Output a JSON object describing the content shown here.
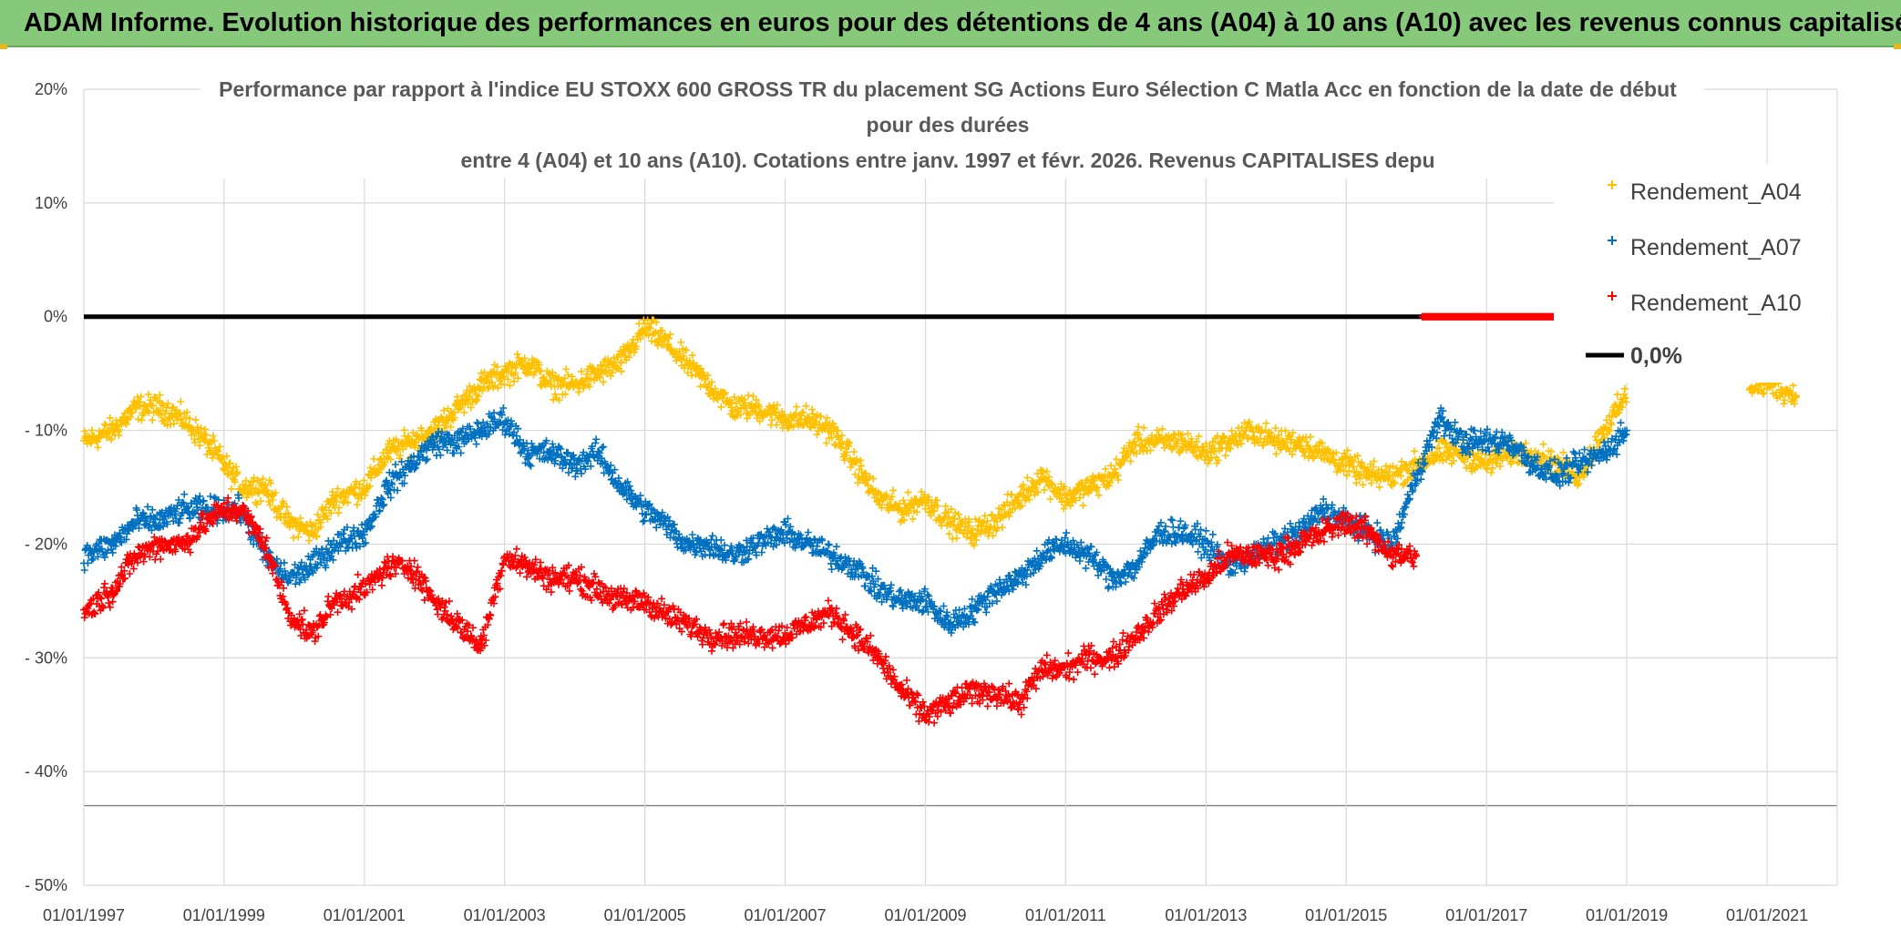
{
  "banner": {
    "title": "ADAM Informe. Evolution historique des performances en euros pour des détentions de 4 ans (A04) à 10 ans (A10) avec les revenus connus capitalisés"
  },
  "colors": {
    "banner_bg": "#86c97a",
    "A04": "#ffc000",
    "A07": "#0070c0",
    "A10": "#ff0000",
    "zero_line": "#000000",
    "grid": "#d9d9d9"
  },
  "chart_data": {
    "type": "scatter",
    "title_lines": [
      "Performance par rapport à l'indice EU STOXX 600 GROSS TR  du placement SG Actions Euro Sélection C Matla Acc en fonction de la date de début",
      "pour des durées",
      "entre 4 (A04) et 10 ans (A10). Cotations entre janv. 1997 et févr. 2026. Revenus CAPITALISES depu"
    ],
    "x_axis": {
      "type": "date",
      "min": "1997-01-01",
      "max": "2022-01-01",
      "tick_labels": [
        "01/01/1997",
        "01/01/1999",
        "01/01/2001",
        "01/01/2003",
        "01/01/2005",
        "01/01/2007",
        "01/01/2009",
        "01/01/2011",
        "01/01/2013",
        "01/01/2015",
        "01/01/2017",
        "01/01/2019",
        "01/01/2021"
      ]
    },
    "y_axis": {
      "min": -50,
      "max": 20,
      "unit": "%",
      "ticks": [
        20,
        10,
        0,
        -10,
        -20,
        -30,
        -40,
        -50
      ],
      "tick_labels": [
        "20%",
        "10%",
        "0%",
        "- 10%",
        "- 20%",
        "- 30%",
        "- 40%",
        "- 50%"
      ]
    },
    "grid": true,
    "legend_position": "right",
    "legend": [
      "Rendement_A04",
      "Rendement_A07",
      "Rendement_A10",
      "0,0%"
    ],
    "series": [
      {
        "name": "Rendement_A04",
        "marker": "plus",
        "color": "#ffc000",
        "points": [
          [
            "1997-01-01",
            -11
          ],
          [
            "1997-06-01",
            -10
          ],
          [
            "1997-10-01",
            -8
          ],
          [
            "1998-02-01",
            -8
          ],
          [
            "1998-06-01",
            -9
          ],
          [
            "1998-10-01",
            -11
          ],
          [
            "1999-01-01",
            -13
          ],
          [
            "1999-04-01",
            -15
          ],
          [
            "1999-08-01",
            -15
          ],
          [
            "1999-12-01",
            -18
          ],
          [
            "2000-04-01",
            -19
          ],
          [
            "2000-08-01",
            -16
          ],
          [
            "2001-01-01",
            -15
          ],
          [
            "2001-05-01",
            -12
          ],
          [
            "2001-09-01",
            -11
          ],
          [
            "2002-01-01",
            -10
          ],
          [
            "2002-05-01",
            -8
          ],
          [
            "2002-09-01",
            -6
          ],
          [
            "2003-01-01",
            -5
          ],
          [
            "2003-05-01",
            -4
          ],
          [
            "2003-09-01",
            -6
          ],
          [
            "2004-01-01",
            -6
          ],
          [
            "2004-05-01",
            -5
          ],
          [
            "2004-09-01",
            -4
          ],
          [
            "2005-01-01",
            -1
          ],
          [
            "2005-04-01",
            -2
          ],
          [
            "2005-08-01",
            -4
          ],
          [
            "2005-12-01",
            -6
          ],
          [
            "2006-04-01",
            -8
          ],
          [
            "2006-08-01",
            -8
          ],
          [
            "2007-01-01",
            -9
          ],
          [
            "2007-05-01",
            -9
          ],
          [
            "2007-09-01",
            -10
          ],
          [
            "2008-01-01",
            -13
          ],
          [
            "2008-05-01",
            -16
          ],
          [
            "2008-09-01",
            -17
          ],
          [
            "2009-01-01",
            -16
          ],
          [
            "2009-05-01",
            -18
          ],
          [
            "2009-09-01",
            -19
          ],
          [
            "2010-01-01",
            -18
          ],
          [
            "2010-05-01",
            -16
          ],
          [
            "2010-09-01",
            -14
          ],
          [
            "2011-01-01",
            -16
          ],
          [
            "2011-05-01",
            -15
          ],
          [
            "2011-09-01",
            -14
          ],
          [
            "2012-01-01",
            -11
          ],
          [
            "2012-05-01",
            -11
          ],
          [
            "2012-09-01",
            -11
          ],
          [
            "2013-01-01",
            -12
          ],
          [
            "2013-05-01",
            -11
          ],
          [
            "2013-09-01",
            -10
          ],
          [
            "2014-01-01",
            -11
          ],
          [
            "2014-05-01",
            -11
          ],
          [
            "2014-09-01",
            -12
          ],
          [
            "2015-01-01",
            -13
          ],
          [
            "2015-05-01",
            -14
          ],
          [
            "2015-09-01",
            -14
          ],
          [
            "2016-01-01",
            -13
          ],
          [
            "2016-05-01",
            -12
          ],
          [
            "2016-09-01",
            -12
          ],
          [
            "2017-01-01",
            -13
          ],
          [
            "2017-05-01",
            -12
          ],
          [
            "2017-09-01",
            -12
          ],
          [
            "2018-01-01",
            -13
          ],
          [
            "2018-05-01",
            -14
          ],
          [
            "2018-09-01",
            -10
          ],
          [
            "2019-01-01",
            -7
          ],
          [
            "2020-10-01",
            -6
          ],
          [
            "2021-02-01",
            -6
          ],
          [
            "2021-06-01",
            -7
          ]
        ]
      },
      {
        "name": "Rendement_A07",
        "marker": "plus",
        "color": "#0070c0",
        "points": [
          [
            "1997-01-01",
            -21
          ],
          [
            "1997-06-01",
            -20
          ],
          [
            "1997-10-01",
            -18
          ],
          [
            "1998-02-01",
            -18
          ],
          [
            "1998-06-01",
            -17
          ],
          [
            "1998-10-01",
            -17
          ],
          [
            "1999-01-01",
            -17
          ],
          [
            "1999-04-01",
            -17
          ],
          [
            "1999-08-01",
            -21
          ],
          [
            "1999-12-01",
            -23
          ],
          [
            "2000-04-01",
            -22
          ],
          [
            "2000-08-01",
            -20
          ],
          [
            "2001-01-01",
            -19
          ],
          [
            "2001-05-01",
            -15
          ],
          [
            "2001-09-01",
            -13
          ],
          [
            "2002-01-01",
            -11
          ],
          [
            "2002-05-01",
            -11
          ],
          [
            "2002-09-01",
            -10
          ],
          [
            "2003-01-01",
            -9
          ],
          [
            "2003-05-01",
            -12
          ],
          [
            "2003-09-01",
            -12
          ],
          [
            "2004-01-01",
            -13
          ],
          [
            "2004-05-01",
            -12
          ],
          [
            "2004-09-01",
            -15
          ],
          [
            "2005-01-01",
            -17
          ],
          [
            "2005-04-01",
            -18
          ],
          [
            "2005-08-01",
            -20
          ],
          [
            "2005-12-01",
            -20
          ],
          [
            "2006-04-01",
            -21
          ],
          [
            "2006-08-01",
            -20
          ],
          [
            "2007-01-01",
            -19
          ],
          [
            "2007-05-01",
            -20
          ],
          [
            "2007-09-01",
            -21
          ],
          [
            "2008-01-01",
            -22
          ],
          [
            "2008-05-01",
            -24
          ],
          [
            "2008-09-01",
            -25
          ],
          [
            "2009-01-01",
            -25
          ],
          [
            "2009-05-01",
            -27
          ],
          [
            "2009-09-01",
            -26
          ],
          [
            "2010-01-01",
            -24
          ],
          [
            "2010-05-01",
            -23
          ],
          [
            "2010-09-01",
            -21
          ],
          [
            "2011-01-01",
            -20
          ],
          [
            "2011-05-01",
            -21
          ],
          [
            "2011-09-01",
            -23
          ],
          [
            "2012-01-01",
            -22
          ],
          [
            "2012-05-01",
            -19
          ],
          [
            "2012-09-01",
            -19
          ],
          [
            "2013-01-01",
            -20
          ],
          [
            "2013-05-01",
            -22
          ],
          [
            "2013-09-01",
            -21
          ],
          [
            "2014-01-01",
            -20
          ],
          [
            "2014-05-01",
            -19
          ],
          [
            "2014-09-01",
            -17
          ],
          [
            "2015-01-01",
            -18
          ],
          [
            "2015-05-01",
            -19
          ],
          [
            "2015-09-01",
            -20
          ],
          [
            "2016-01-01",
            -14
          ],
          [
            "2016-05-01",
            -9
          ],
          [
            "2016-09-01",
            -11
          ],
          [
            "2017-01-01",
            -11
          ],
          [
            "2017-05-01",
            -11
          ],
          [
            "2017-09-01",
            -13
          ],
          [
            "2018-01-01",
            -14
          ],
          [
            "2018-05-01",
            -13
          ],
          [
            "2018-09-01",
            -12
          ],
          [
            "2019-01-01",
            -10
          ]
        ]
      },
      {
        "name": "Rendement_A10",
        "marker": "plus",
        "color": "#ff0000",
        "points": [
          [
            "1997-01-01",
            -26
          ],
          [
            "1997-06-01",
            -24
          ],
          [
            "1997-10-01",
            -21
          ],
          [
            "1998-02-01",
            -20
          ],
          [
            "1998-06-01",
            -20
          ],
          [
            "1998-10-01",
            -18
          ],
          [
            "1999-01-01",
            -17
          ],
          [
            "1999-04-01",
            -17
          ],
          [
            "1999-08-01",
            -20
          ],
          [
            "1999-12-01",
            -26
          ],
          [
            "2000-04-01",
            -28
          ],
          [
            "2000-08-01",
            -25
          ],
          [
            "2001-01-01",
            -24
          ],
          [
            "2001-05-01",
            -22
          ],
          [
            "2001-09-01",
            -22
          ],
          [
            "2002-01-01",
            -25
          ],
          [
            "2002-05-01",
            -27
          ],
          [
            "2002-09-01",
            -29
          ],
          [
            "2003-01-01",
            -21
          ],
          [
            "2003-05-01",
            -22
          ],
          [
            "2003-09-01",
            -23
          ],
          [
            "2004-01-01",
            -23
          ],
          [
            "2004-05-01",
            -24
          ],
          [
            "2004-09-01",
            -25
          ],
          [
            "2005-01-01",
            -25
          ],
          [
            "2005-04-01",
            -26
          ],
          [
            "2005-08-01",
            -27
          ],
          [
            "2005-12-01",
            -28
          ],
          [
            "2006-04-01",
            -28
          ],
          [
            "2006-08-01",
            -28
          ],
          [
            "2007-01-01",
            -28
          ],
          [
            "2007-05-01",
            -27
          ],
          [
            "2007-09-01",
            -26
          ],
          [
            "2008-01-01",
            -28
          ],
          [
            "2008-05-01",
            -30
          ],
          [
            "2008-09-01",
            -33
          ],
          [
            "2009-01-01",
            -35
          ],
          [
            "2009-05-01",
            -34
          ],
          [
            "2009-09-01",
            -33
          ],
          [
            "2010-01-01",
            -33
          ],
          [
            "2010-05-01",
            -34
          ],
          [
            "2010-09-01",
            -31
          ],
          [
            "2011-01-01",
            -31
          ],
          [
            "2011-05-01",
            -30
          ],
          [
            "2011-09-01",
            -30
          ],
          [
            "2012-01-01",
            -28
          ],
          [
            "2012-05-01",
            -26
          ],
          [
            "2012-09-01",
            -24
          ],
          [
            "2013-01-01",
            -23
          ],
          [
            "2013-05-01",
            -21
          ],
          [
            "2013-09-01",
            -21
          ],
          [
            "2014-01-01",
            -21
          ],
          [
            "2014-05-01",
            -20
          ],
          [
            "2014-09-01",
            -19
          ],
          [
            "2015-01-01",
            -18
          ],
          [
            "2015-05-01",
            -19
          ],
          [
            "2015-09-01",
            -21
          ],
          [
            "2016-01-01",
            -21
          ]
        ],
        "zero_points": {
          "start": "2016-02-01",
          "end": "2019-03-01",
          "value": 0
        }
      }
    ],
    "reference_line": {
      "label": "0,0%",
      "value": 0,
      "start": "1997-01-01",
      "end": "2016-02-01"
    }
  }
}
